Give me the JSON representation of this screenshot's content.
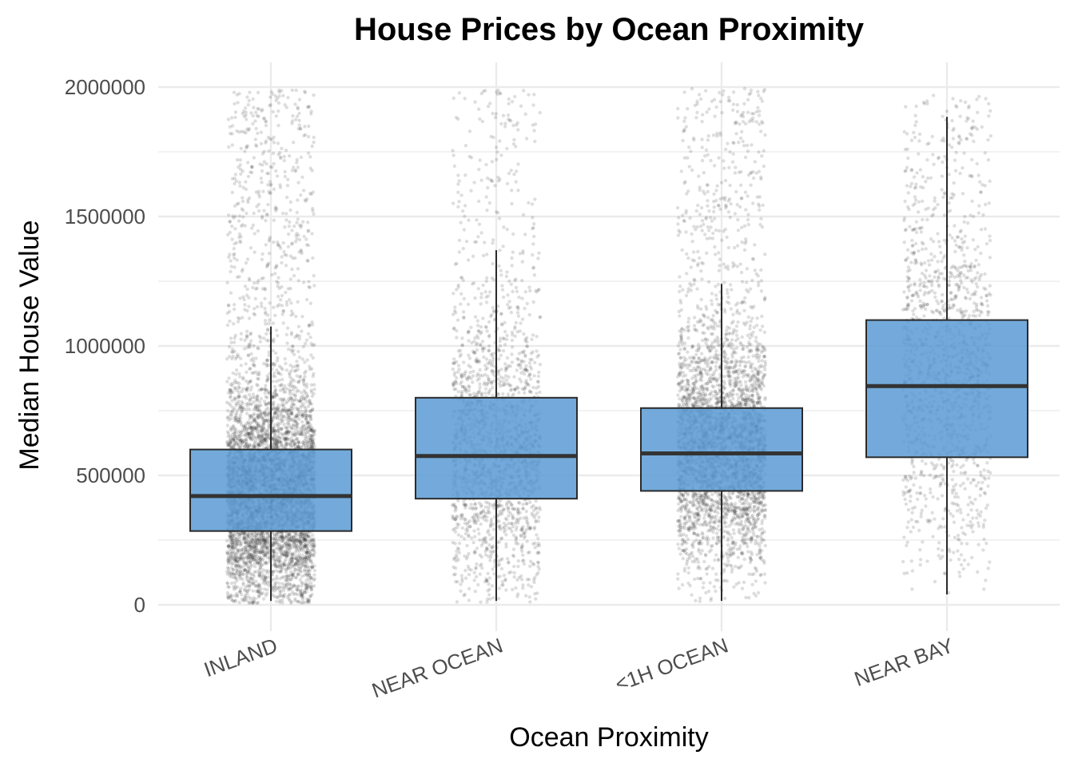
{
  "chart_data": {
    "type": "boxplot",
    "title": "House Prices by Ocean Proximity",
    "xlabel": "Ocean Proximity",
    "ylabel": "Median House Value",
    "categories": [
      "INLAND",
      "NEAR OCEAN",
      "<1H OCEAN",
      "NEAR BAY"
    ],
    "y_ticks": [
      0,
      500000,
      1000000,
      1500000,
      2000000
    ],
    "y_tick_labels": [
      "0",
      "500000",
      "1000000",
      "1500000",
      "2000000"
    ],
    "ylim": [
      -85000,
      2085000
    ],
    "grid": true,
    "boxes": [
      {
        "category": "INLAND",
        "whisker_low": 15000,
        "q1": 285000,
        "median": 420000,
        "q3": 600000,
        "whisker_high": 1075000,
        "n_points": 5200,
        "point_range": [
          5000,
          1990000
        ]
      },
      {
        "category": "NEAR OCEAN",
        "whisker_low": 15000,
        "q1": 410000,
        "median": 575000,
        "q3": 800000,
        "whisker_high": 1370000,
        "n_points": 1900,
        "point_range": [
          5000,
          1990000
        ]
      },
      {
        "category": "<1H OCEAN",
        "whisker_low": 15000,
        "q1": 440000,
        "median": 585000,
        "q3": 760000,
        "whisker_high": 1240000,
        "n_points": 3600,
        "point_range": [
          5000,
          1995000
        ]
      },
      {
        "category": "NEAR BAY",
        "whisker_low": 40000,
        "q1": 570000,
        "median": 845000,
        "q3": 1100000,
        "whisker_high": 1885000,
        "n_points": 1400,
        "point_range": [
          40000,
          1970000
        ]
      }
    ],
    "box_fill": "#5b9bd5",
    "box_outline": "#2b2b2b",
    "point_color": "#000000",
    "grid_color": "#ebebeb"
  }
}
